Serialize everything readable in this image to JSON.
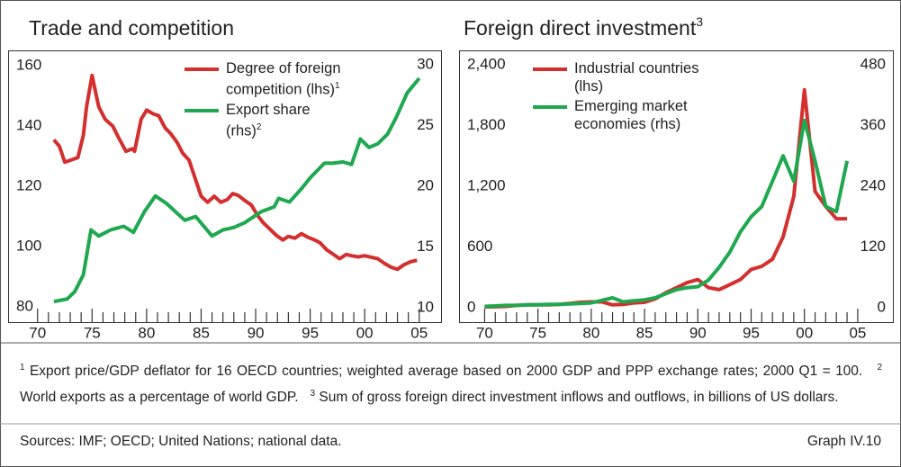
{
  "chart_data": [
    {
      "type": "line",
      "title": "Trade and competition",
      "xlim": [
        1967.3,
        2007
      ],
      "xticks": [
        {
          "value": 1970,
          "label": "70"
        },
        {
          "value": 1975,
          "label": "75"
        },
        {
          "value": 1980,
          "label": "80"
        },
        {
          "value": 1985,
          "label": "85"
        },
        {
          "value": 1990,
          "label": "90"
        },
        {
          "value": 1995,
          "label": "95"
        },
        {
          "value": 2000,
          "label": "00"
        },
        {
          "value": 2005,
          "label": "05"
        }
      ],
      "ylim": [
        75,
        165
      ],
      "yticks": [
        80,
        100,
        120,
        140,
        160
      ],
      "y2lim": [
        8.8,
        31.2
      ],
      "y2ticks": [
        10,
        15,
        20,
        25,
        30
      ],
      "series": [
        {
          "name": "Degree of foreign competition (lhs)",
          "name_note": "1",
          "color": "#d32f2f",
          "x": [
            1971.5,
            1972,
            1972.5,
            1973,
            1973.7,
            1974.2,
            1974.5,
            1975,
            1975.6,
            1976.2,
            1976.9,
            1977.4,
            1978.1,
            1978.7,
            1978.9,
            1979.5,
            1980,
            1980.6,
            1981.1,
            1981.7,
            1982.2,
            1982.8,
            1983.3,
            1983.9,
            1984.5,
            1985,
            1985.6,
            1986.2,
            1986.8,
            1987.4,
            1987.9,
            1988.4,
            1989,
            1989.6,
            1990.2,
            1990.7,
            1991.3,
            1991.9,
            1992.5,
            1993,
            1993.6,
            1994.2,
            1994.8,
            1995.4,
            1995.9,
            1996.5,
            1997.1,
            1997.7,
            1998.3,
            1998.8,
            1999.4,
            2000,
            2000.6,
            2001.2,
            2001.8,
            2002.4,
            2003,
            2003.6,
            2004.2,
            2004.8
          ],
          "values": [
            135.4,
            133.3,
            128,
            128.6,
            129.5,
            136.9,
            146.4,
            156.7,
            146.4,
            142.2,
            139.9,
            136.3,
            131.6,
            132.4,
            131.6,
            142.2,
            145.2,
            144,
            143.4,
            139.3,
            137.5,
            134.5,
            131,
            128.6,
            122.1,
            116.7,
            114.7,
            116.7,
            114.7,
            115.6,
            117.6,
            117,
            115.3,
            113.8,
            110.2,
            107.9,
            105.8,
            103.7,
            102.2,
            103.4,
            102.8,
            104.3,
            103.1,
            102.2,
            101.3,
            99,
            97.5,
            96,
            97.4,
            97,
            96.6,
            97,
            96.5,
            96,
            94.5,
            93.2,
            92.5,
            94,
            95,
            95.5
          ]
        },
        {
          "name": "Export share (rhs)",
          "name_note": "2",
          "color": "#1fa84f",
          "axis": "y2",
          "x": [
            1971.5,
            1972.7,
            1973.4,
            1974.2,
            1974.9,
            1975.6,
            1976.7,
            1977.9,
            1978.8,
            1979.8,
            1980.8,
            1981.8,
            1983.5,
            1984.5,
            1986,
            1987,
            1988,
            1989,
            1990.5,
            1991.7,
            1992.1,
            1993.1,
            1994.2,
            1995,
            1996.3,
            1997.1,
            1998,
            1998.8,
            1999.6,
            2000.4,
            2001.2,
            2002.1,
            2002.9,
            2003.9,
            2005
          ],
          "values": [
            10.5,
            10.7,
            11.3,
            12.7,
            16.4,
            15.9,
            16.4,
            16.7,
            16.2,
            17.9,
            19.2,
            18.6,
            17.2,
            17.5,
            15.9,
            16.4,
            16.6,
            17,
            17.9,
            18.3,
            19,
            18.7,
            19.8,
            20.7,
            21.9,
            21.9,
            22,
            21.8,
            23.9,
            23.2,
            23.5,
            24.3,
            25.7,
            27.7,
            28.9
          ]
        }
      ]
    },
    {
      "type": "line",
      "title": "Foreign direct investment",
      "title_note": "3",
      "xlim": [
        1967.6,
        2008.3
      ],
      "xticks": [
        {
          "value": 1970,
          "label": "70"
        },
        {
          "value": 1975,
          "label": "75"
        },
        {
          "value": 1980,
          "label": "80"
        },
        {
          "value": 1985,
          "label": "85"
        },
        {
          "value": 1990,
          "label": "90"
        },
        {
          "value": 1995,
          "label": "95"
        },
        {
          "value": 2000,
          "label": "00"
        },
        {
          "value": 2005,
          "label": "05"
        }
      ],
      "ylim": [
        -140,
        2540
      ],
      "yticks": [
        0,
        {
          "value": 600,
          "label": "600"
        },
        {
          "value": 1200,
          "label": "1,200"
        },
        {
          "value": 1800,
          "label": "1,800"
        },
        {
          "value": 2400,
          "label": "2,400"
        }
      ],
      "y2lim": [
        -28,
        508
      ],
      "y2ticks": [
        0,
        120,
        240,
        360,
        480
      ],
      "x": [
        1970,
        1971,
        1972,
        1973,
        1974,
        1975,
        1976,
        1977,
        1978,
        1979,
        1980,
        1981,
        1982,
        1983,
        1984,
        1985,
        1986,
        1987,
        1988,
        1989,
        1990,
        1991,
        1992,
        1993,
        1994,
        1995,
        1996,
        1997,
        1998,
        1999,
        2000,
        2001,
        2002,
        2003,
        2004
      ],
      "series": [
        {
          "name": "Industrial countries (lhs)",
          "color": "#d32f2f",
          "values": [
            10,
            12,
            15,
            25,
            30,
            30,
            30,
            35,
            45,
            55,
            60,
            60,
            30,
            35,
            50,
            55,
            90,
            150,
            200,
            250,
            280,
            200,
            180,
            230,
            280,
            380,
            410,
            480,
            700,
            1100,
            2150,
            1150,
            1000,
            880,
            880
          ]
        },
        {
          "name": "Emerging market economies (rhs)",
          "color": "#1fa84f",
          "axis": "y2",
          "values": [
            3,
            4,
            5,
            5,
            6,
            6,
            7,
            7,
            8,
            9,
            10,
            15,
            20,
            12,
            14,
            16,
            20,
            28,
            36,
            40,
            42,
            55,
            80,
            110,
            150,
            180,
            200,
            250,
            300,
            250,
            370,
            290,
            200,
            190,
            290
          ]
        }
      ]
    }
  ],
  "footnotes": [
    {
      "mark": "1",
      "text": "Export price/GDP deflator for 16 OECD countries; weighted average based on 2000 GDP and PPP exchange rates; 2000 Q1 = 100."
    },
    {
      "mark": "2",
      "text": "World exports as a percentage of world GDP."
    },
    {
      "mark": "3",
      "text": "Sum of gross foreign direct investment inflows and outflows, in billions of US dollars."
    }
  ],
  "sources": "Sources: IMF; OECD; United Nations; national data.",
  "graph_label": "Graph IV.10"
}
